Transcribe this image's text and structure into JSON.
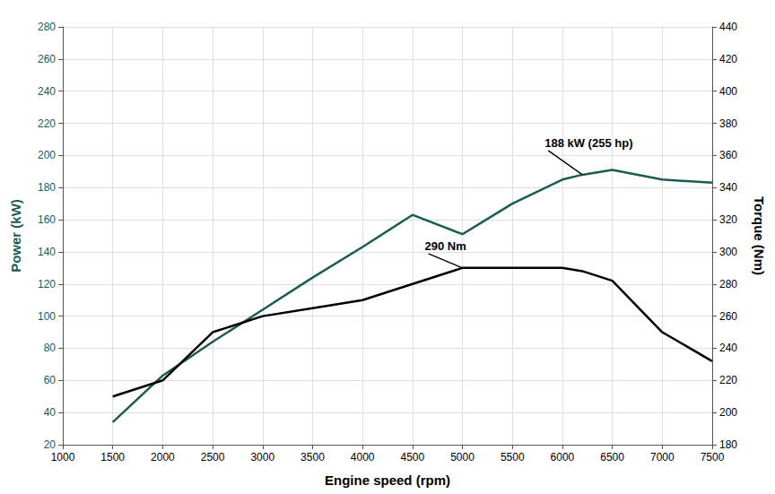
{
  "chart_data": {
    "type": "line",
    "x": [
      1500,
      2000,
      2500,
      3000,
      3500,
      4000,
      4500,
      5000,
      5500,
      6000,
      6200,
      6500,
      7000,
      7500
    ],
    "series": [
      {
        "color": "#1a5c52",
        "values": [
          34,
          63,
          84,
          104,
          124,
          143,
          163,
          151,
          170,
          185,
          188,
          191,
          185,
          183
        ]
      },
      {
        "color": "#000000",
        "axis": "y2",
        "values": [
          210,
          220,
          250,
          260,
          265,
          270,
          280,
          290,
          290,
          290,
          288,
          282,
          250,
          232
        ]
      }
    ],
    "xlabel": "Engine speed (rpm)",
    "ylabel": "Power (kW)",
    "y2label": "Torque (Nm)",
    "xlim": [
      1000,
      7500
    ],
    "xticks": [
      1000,
      1500,
      2000,
      2500,
      3000,
      3500,
      4000,
      4500,
      5000,
      5500,
      6000,
      6500,
      7000,
      7500
    ],
    "ylim": [
      20,
      280
    ],
    "yticks": [
      20,
      40,
      60,
      80,
      100,
      120,
      140,
      160,
      180,
      200,
      220,
      240,
      260,
      280
    ],
    "y2lim": [
      180,
      440
    ],
    "y2ticks": [
      180,
      200,
      220,
      240,
      260,
      280,
      300,
      320,
      340,
      360,
      380,
      400,
      420,
      440
    ],
    "grid": true,
    "annotations": [
      {
        "text": "188 kW (255 hp)",
        "x": 6200,
        "y": 188
      },
      {
        "text": "290 Nm",
        "x": 5000,
        "y": 290,
        "axis": "y2"
      }
    ]
  }
}
